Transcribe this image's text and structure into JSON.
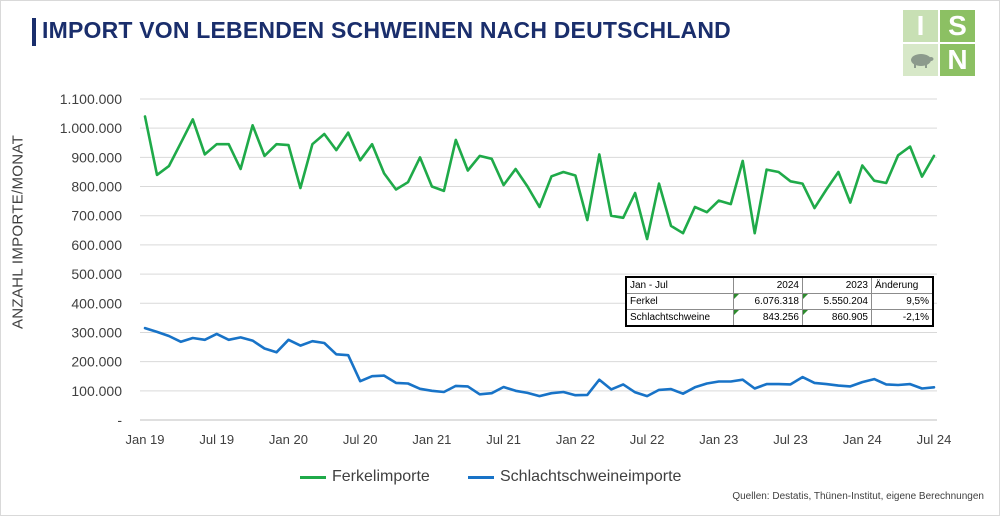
{
  "title": "IMPORT VON LEBENDEN SCHWEINEN NACH DEUTSCHLAND",
  "logo": {
    "letters": [
      "I",
      "S",
      "N"
    ],
    "colors": [
      "#c8e0b4",
      "#8cc063",
      "#d7e8c8"
    ]
  },
  "source": "Quellen: Destatis, Thünen-Institut, eigene Berechnungen",
  "table": {
    "header": [
      "Jan - Jul",
      "2024",
      "2023",
      "Änderung"
    ],
    "rows": [
      {
        "label": "Ferkel",
        "v2024": "6.076.318",
        "v2023": "5.550.204",
        "change": "9,5%"
      },
      {
        "label": "Schlachtschweine",
        "v2024": "843.256",
        "v2023": "860.905",
        "change": "-2,1%"
      }
    ]
  },
  "chart_data": {
    "type": "line",
    "ylabel": "ANZAHL IMPORTE/MONAT",
    "ylim": [
      0,
      1100000
    ],
    "yticks": [
      0,
      100000,
      200000,
      300000,
      400000,
      500000,
      600000,
      700000,
      800000,
      900000,
      1000000,
      1100000
    ],
    "ytick_labels": [
      "-",
      "100.000",
      "200.000",
      "300.000",
      "400.000",
      "500.000",
      "600.000",
      "700.000",
      "800.000",
      "900.000",
      "1.000.000",
      "1.100.000"
    ],
    "x_start": "Jan 19",
    "xtick_labels": [
      "Jan 19",
      "Jul 19",
      "Jan 20",
      "Jul 20",
      "Jan 21",
      "Jul 21",
      "Jan 22",
      "Jul 22",
      "Jan 23",
      "Jul 23",
      "Jan 24",
      "Jul 24"
    ],
    "grid": true,
    "legend_position": "bottom",
    "series": [
      {
        "name": "Ferkelimporte",
        "color": "#1faa49",
        "values": [
          1040000,
          840000,
          870000,
          950000,
          1030000,
          910000,
          945000,
          945000,
          860000,
          1010000,
          905000,
          945000,
          942000,
          795000,
          945000,
          980000,
          925000,
          985000,
          890000,
          945000,
          845000,
          790000,
          815000,
          900000,
          800000,
          785000,
          960000,
          855000,
          905000,
          895000,
          805000,
          860000,
          800000,
          730000,
          835000,
          850000,
          838000,
          685000,
          910000,
          700000,
          693000,
          778000,
          620000,
          810000,
          665000,
          640000,
          730000,
          712000,
          752000,
          740000,
          888000,
          640000,
          858000,
          850000,
          818000,
          810000,
          726000,
          790000,
          850000,
          745000,
          872000,
          820000,
          812000,
          907000,
          937000,
          834000,
          905000
        ]
      },
      {
        "name": "Schlachtschweineimporte",
        "color": "#1873c7",
        "values": [
          315000,
          302000,
          288000,
          268000,
          281000,
          275000,
          295000,
          275000,
          283000,
          272000,
          245000,
          232000,
          275000,
          255000,
          270000,
          264000,
          225000,
          222000,
          133000,
          150000,
          152000,
          127000,
          125000,
          107000,
          100000,
          96000,
          117000,
          115000,
          88000,
          92000,
          113000,
          100000,
          93000,
          82000,
          92000,
          96000,
          85000,
          86000,
          138000,
          105000,
          122000,
          95000,
          82000,
          103000,
          106000,
          90000,
          112000,
          125000,
          132000,
          132000,
          138000,
          108000,
          123000,
          123000,
          122000,
          147000,
          127000,
          123000,
          118000,
          115000,
          130000,
          140000,
          122000,
          120000,
          123000,
          108000,
          112000
        ]
      }
    ]
  }
}
